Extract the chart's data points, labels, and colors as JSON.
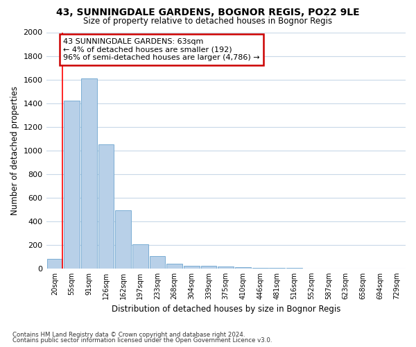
{
  "title": "43, SUNNINGDALE GARDENS, BOGNOR REGIS, PO22 9LE",
  "subtitle": "Size of property relative to detached houses in Bognor Regis",
  "xlabel": "Distribution of detached houses by size in Bognor Regis",
  "ylabel": "Number of detached properties",
  "bar_color": "#b8d0e8",
  "bar_edge_color": "#7aadd4",
  "categories": [
    "20sqm",
    "55sqm",
    "91sqm",
    "126sqm",
    "162sqm",
    "197sqm",
    "233sqm",
    "268sqm",
    "304sqm",
    "339sqm",
    "375sqm",
    "410sqm",
    "446sqm",
    "481sqm",
    "516sqm",
    "552sqm",
    "587sqm",
    "623sqm",
    "658sqm",
    "694sqm",
    "729sqm"
  ],
  "values": [
    80,
    1420,
    1610,
    1050,
    490,
    205,
    105,
    40,
    20,
    20,
    15,
    10,
    5,
    3,
    2,
    1,
    1,
    0,
    0,
    0,
    0
  ],
  "ylim": [
    0,
    2000
  ],
  "yticks": [
    0,
    200,
    400,
    600,
    800,
    1000,
    1200,
    1400,
    1600,
    1800,
    2000
  ],
  "annotation_line1": "43 SUNNINGDALE GARDENS: 63sqm",
  "annotation_line2": "← 4% of detached houses are smaller (192)",
  "annotation_line3": "96% of semi-detached houses are larger (4,786) →",
  "annotation_box_facecolor": "#ffffff",
  "annotation_box_edgecolor": "#cc0000",
  "red_line_bar_index": 0,
  "footnote1": "Contains HM Land Registry data © Crown copyright and database right 2024.",
  "footnote2": "Contains public sector information licensed under the Open Government Licence v3.0.",
  "bg_color": "#ffffff",
  "grid_color": "#c8d8e8"
}
